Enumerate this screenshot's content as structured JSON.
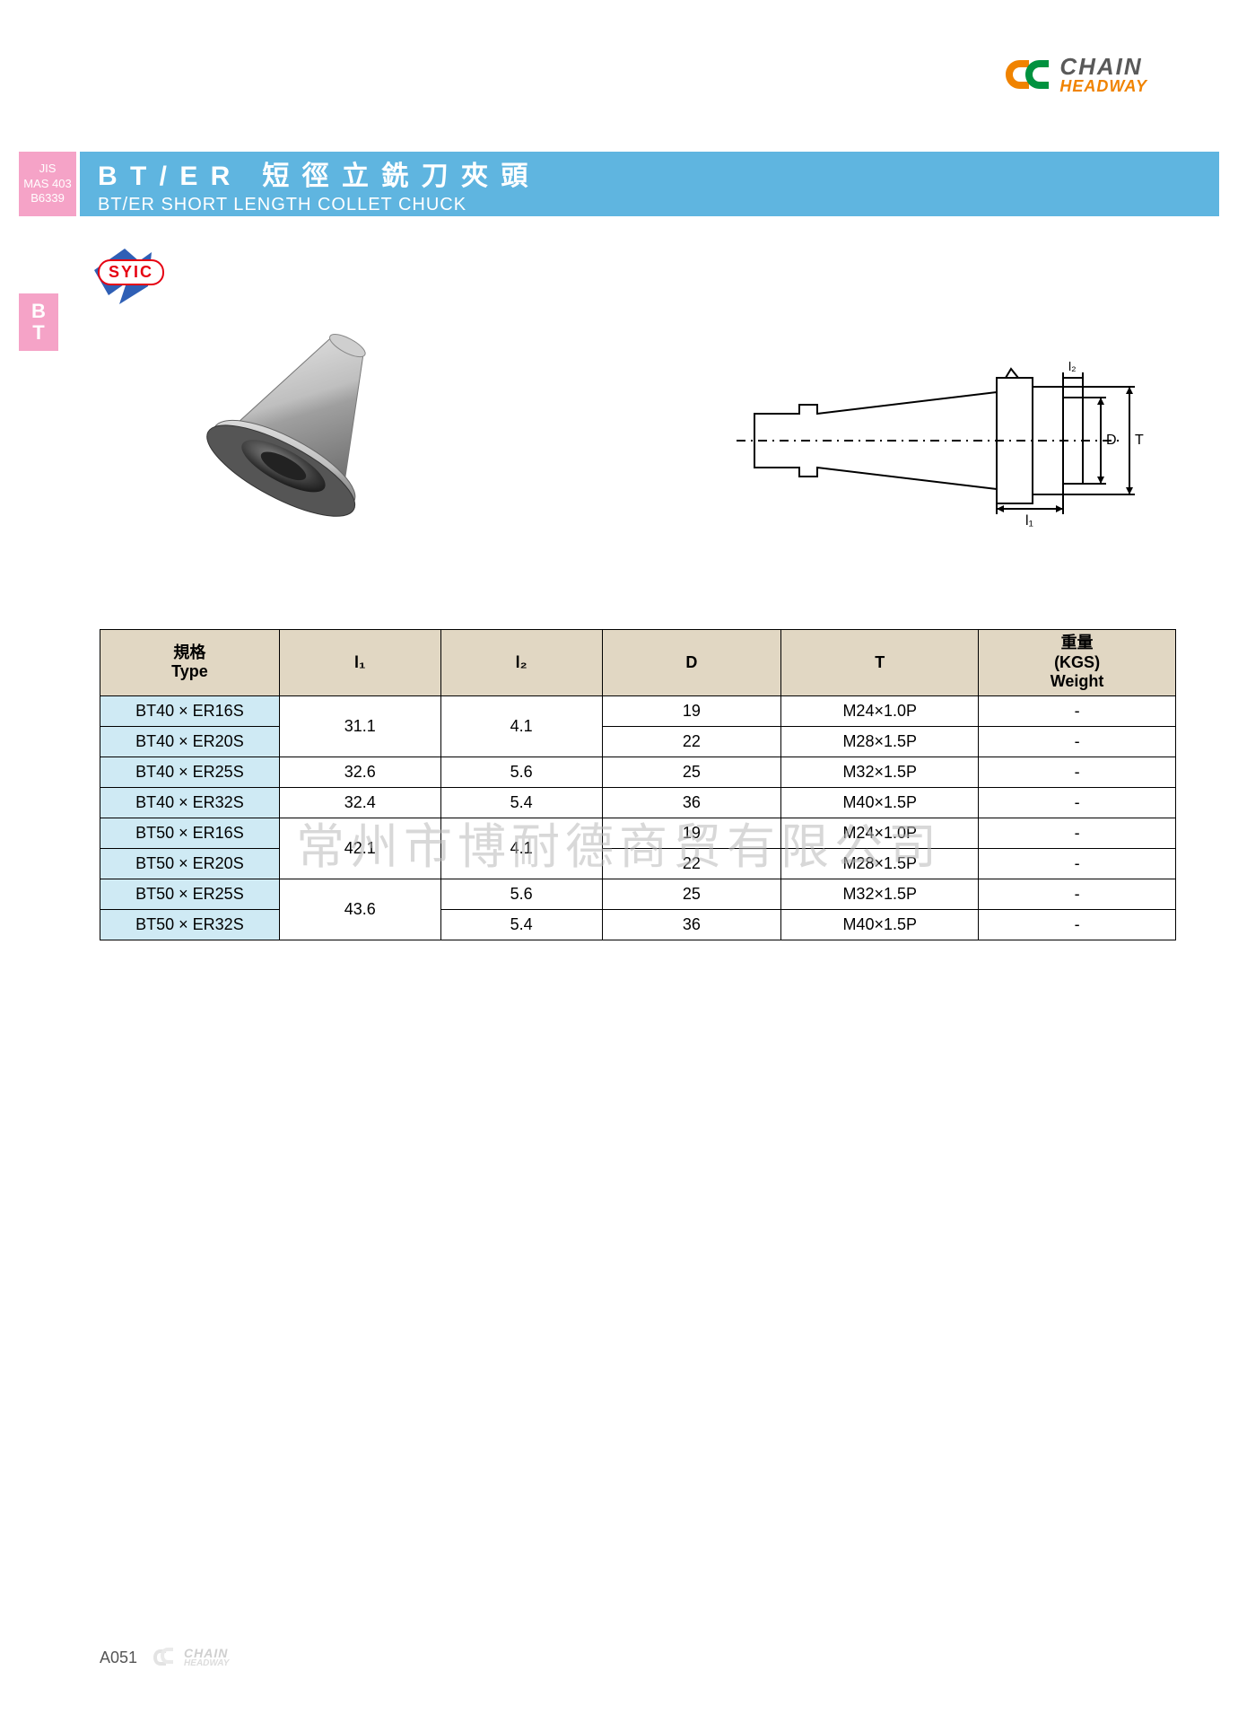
{
  "brand": {
    "line1": "CHAIN",
    "line2": "HEADWAY",
    "mark_colors": {
      "outer": "#f08300",
      "inner": "#00923f"
    }
  },
  "title_bar": {
    "bg": "#5fb5e0",
    "pink_tab_bg": "#f5a3c7",
    "std_line1": "JIS",
    "std_line2": "MAS 403",
    "std_line3": "B6339",
    "title_main": "B T / E R　短 徑 立 銑 刀 夾 頭",
    "title_sub": "BT/ER SHORT LENGTH COLLET CHUCK"
  },
  "side_tab": {
    "line1": "B",
    "line2": "T"
  },
  "syic": {
    "label": "SYIC",
    "border": "#e60012",
    "arrow_color": "#2f5fb5"
  },
  "schematic_labels": {
    "l1": "l₁",
    "l2": "l₂",
    "D": "D",
    "T": "T"
  },
  "table": {
    "header_bg": "#e1d7c3",
    "type_bg": "#cfeaf4",
    "border": "#000000",
    "columns": [
      {
        "key": "type",
        "cn": "規格",
        "en": "Type"
      },
      {
        "key": "l1",
        "cn": "",
        "en": "l₁"
      },
      {
        "key": "l2",
        "cn": "",
        "en": "l₂"
      },
      {
        "key": "D",
        "cn": "",
        "en": "D"
      },
      {
        "key": "T",
        "cn": "",
        "en": "T"
      },
      {
        "key": "w",
        "cn": "重量",
        "en": "(KGS)\nWeight"
      }
    ],
    "rows": [
      {
        "type": "BT40 × ER16S",
        "l1": "31.1",
        "l1_rowspan": 2,
        "l2": "4.1",
        "l2_rowspan": 2,
        "D": "19",
        "T": "M24×1.0P",
        "w": "-"
      },
      {
        "type": "BT40 × ER20S",
        "D": "22",
        "T": "M28×1.5P",
        "w": "-"
      },
      {
        "type": "BT40 × ER25S",
        "l1": "32.6",
        "l2": "5.6",
        "D": "25",
        "T": "M32×1.5P",
        "w": "-"
      },
      {
        "type": "BT40 × ER32S",
        "l1": "32.4",
        "l2": "5.4",
        "D": "36",
        "T": "M40×1.5P",
        "w": "-"
      },
      {
        "type": "BT50 × ER16S",
        "l1": "42.1",
        "l1_rowspan": 2,
        "l2": "4.1",
        "l2_rowspan": 2,
        "D": "19",
        "T": "M24×1.0P",
        "w": "-"
      },
      {
        "type": "BT50 × ER20S",
        "D": "22",
        "T": "M28×1.5P",
        "w": "-"
      },
      {
        "type": "BT50 × ER25S",
        "l1": "43.6",
        "l1_rowspan": 2,
        "l2": "5.6",
        "D": "25",
        "T": "M32×1.5P",
        "w": "-"
      },
      {
        "type": "BT50 × ER32S",
        "l2": "5.4",
        "D": "36",
        "T": "M40×1.5P",
        "w": "-"
      }
    ]
  },
  "watermark": "常州市博耐德商贸有限公司",
  "footer": {
    "page": "A051"
  }
}
